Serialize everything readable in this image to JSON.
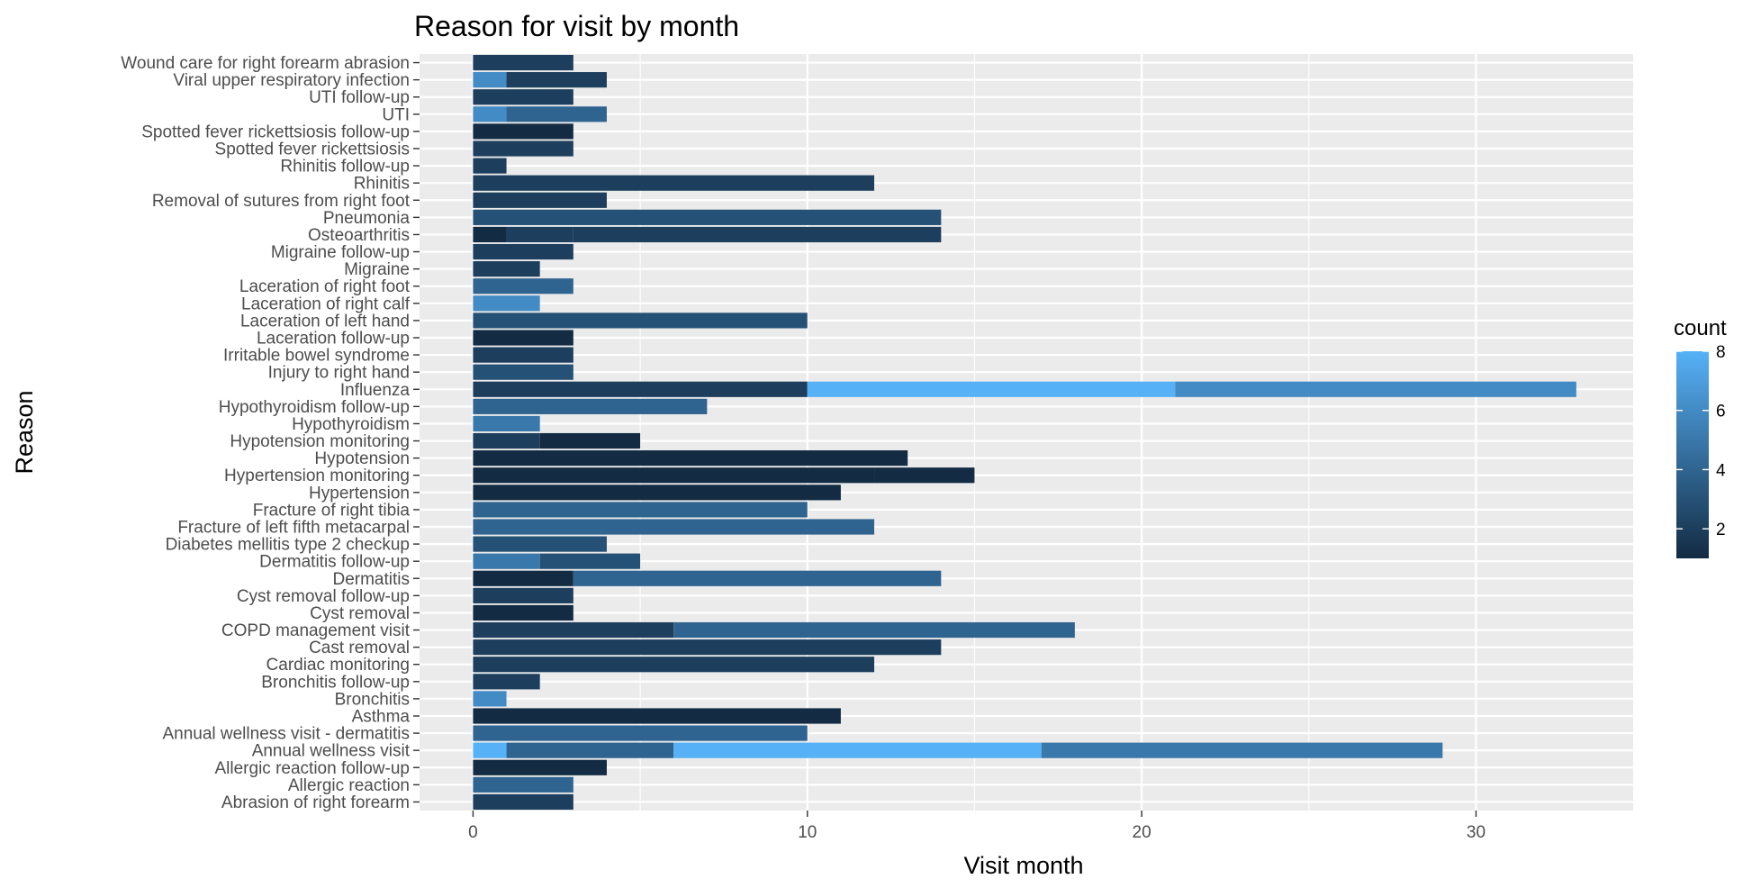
{
  "chart_data": {
    "type": "bar",
    "orientation": "horizontal",
    "stacked": true,
    "title": "Reason for visit by month",
    "xlabel": "Visit month",
    "ylabel": "Reason",
    "xlim": [
      -1.6,
      34.7
    ],
    "xticks": [
      0,
      10,
      20,
      30
    ],
    "grid": true,
    "legend": {
      "title": "count",
      "position": "right",
      "ticks": [
        2,
        4,
        6,
        8
      ],
      "range": [
        1,
        8
      ],
      "color_low": "#132B43",
      "color_high": "#56B1F7"
    },
    "categories": [
      "Wound care for right forearm abrasion",
      "Viral upper respiratory infection",
      "UTI follow-up",
      "UTI",
      "Spotted fever rickettsiosis follow-up",
      "Spotted fever rickettsiosis",
      "Rhinitis follow-up",
      "Rhinitis",
      "Removal of sutures from right foot",
      "Pneumonia",
      "Osteoarthritis",
      "Migraine follow-up",
      "Migraine",
      "Laceration of right foot",
      "Laceration of right calf",
      "Laceration of left hand",
      "Laceration follow-up",
      "Irritable bowel syndrome",
      "Injury to right hand",
      "Influenza",
      "Hypothyroidism follow-up",
      "Hypothyroidism",
      "Hypotension monitoring",
      "Hypotension",
      "Hypertension monitoring",
      "Hypertension",
      "Fracture of right tibia",
      "Fracture of left fifth metacarpal",
      "Diabetes mellitis type 2 checkup",
      "Dermatitis follow-up",
      "Dermatitis",
      "Cyst removal follow-up",
      "Cyst removal",
      "COPD management visit",
      "Cast removal",
      "Cardiac monitoring",
      "Bronchitis follow-up",
      "Bronchitis",
      "Asthma",
      "Annual wellness visit - dermatitis",
      "Annual wellness visit",
      "Allergic reaction follow-up",
      "Allergic reaction",
      "Abrasion of right forearm"
    ],
    "segments": [
      [
        {
          "start": 0,
          "end": 3,
          "count": 2
        }
      ],
      [
        {
          "start": 0,
          "end": 1,
          "count": 6
        },
        {
          "start": 1,
          "end": 4,
          "count": 2
        }
      ],
      [
        {
          "start": 0,
          "end": 3,
          "count": 2
        }
      ],
      [
        {
          "start": 0,
          "end": 1,
          "count": 6
        },
        {
          "start": 1,
          "end": 4,
          "count": 4
        }
      ],
      [
        {
          "start": 0,
          "end": 3,
          "count": 1
        }
      ],
      [
        {
          "start": 0,
          "end": 3,
          "count": 2
        }
      ],
      [
        {
          "start": 0,
          "end": 1,
          "count": 2
        }
      ],
      [
        {
          "start": 0,
          "end": 12,
          "count": 2
        }
      ],
      [
        {
          "start": 0,
          "end": 4,
          "count": 2
        }
      ],
      [
        {
          "start": 0,
          "end": 14,
          "count": 3
        }
      ],
      [
        {
          "start": 0,
          "end": 1,
          "count": 1
        },
        {
          "start": 1,
          "end": 3,
          "count": 2
        },
        {
          "start": 3,
          "end": 14,
          "count": 2
        }
      ],
      [
        {
          "start": 0,
          "end": 3,
          "count": 2
        }
      ],
      [
        {
          "start": 0,
          "end": 2,
          "count": 2
        }
      ],
      [
        {
          "start": 0,
          "end": 3,
          "count": 4
        }
      ],
      [
        {
          "start": 0,
          "end": 2,
          "count": 6
        }
      ],
      [
        {
          "start": 0,
          "end": 10,
          "count": 3
        }
      ],
      [
        {
          "start": 0,
          "end": 3,
          "count": 1
        }
      ],
      [
        {
          "start": 0,
          "end": 3,
          "count": 2
        }
      ],
      [
        {
          "start": 0,
          "end": 3,
          "count": 3
        }
      ],
      [
        {
          "start": 0,
          "end": 10,
          "count": 2
        },
        {
          "start": 10,
          "end": 21,
          "count": 8
        },
        {
          "start": 21,
          "end": 33,
          "count": 6
        }
      ],
      [
        {
          "start": 0,
          "end": 7,
          "count": 4
        }
      ],
      [
        {
          "start": 0,
          "end": 2,
          "count": 5
        }
      ],
      [
        {
          "start": 0,
          "end": 2,
          "count": 2
        },
        {
          "start": 2,
          "end": 5,
          "count": 1
        }
      ],
      [
        {
          "start": 0,
          "end": 13,
          "count": 1
        }
      ],
      [
        {
          "start": 0,
          "end": 12,
          "count": 1
        },
        {
          "start": 12,
          "end": 15,
          "count": 1
        }
      ],
      [
        {
          "start": 0,
          "end": 11,
          "count": 1
        }
      ],
      [
        {
          "start": 0,
          "end": 10,
          "count": 4
        }
      ],
      [
        {
          "start": 0,
          "end": 12,
          "count": 4
        }
      ],
      [
        {
          "start": 0,
          "end": 4,
          "count": 3
        }
      ],
      [
        {
          "start": 0,
          "end": 2,
          "count": 5
        },
        {
          "start": 2,
          "end": 5,
          "count": 3
        }
      ],
      [
        {
          "start": 0,
          "end": 3,
          "count": 1
        },
        {
          "start": 3,
          "end": 14,
          "count": 4
        }
      ],
      [
        {
          "start": 0,
          "end": 3,
          "count": 2
        }
      ],
      [
        {
          "start": 0,
          "end": 3,
          "count": 1
        }
      ],
      [
        {
          "start": 0,
          "end": 6,
          "count": 2
        },
        {
          "start": 6,
          "end": 18,
          "count": 4
        }
      ],
      [
        {
          "start": 0,
          "end": 14,
          "count": 2
        }
      ],
      [
        {
          "start": 0,
          "end": 12,
          "count": 2
        }
      ],
      [
        {
          "start": 0,
          "end": 2,
          "count": 2
        }
      ],
      [
        {
          "start": 0,
          "end": 1,
          "count": 6
        }
      ],
      [
        {
          "start": 0,
          "end": 11,
          "count": 1
        }
      ],
      [
        {
          "start": 0,
          "end": 10,
          "count": 4
        }
      ],
      [
        {
          "start": 0,
          "end": 1,
          "count": 8
        },
        {
          "start": 1,
          "end": 6,
          "count": 4
        },
        {
          "start": 6,
          "end": 17,
          "count": 8
        },
        {
          "start": 17,
          "end": 29,
          "count": 5
        }
      ],
      [
        {
          "start": 0,
          "end": 4,
          "count": 1
        }
      ],
      [
        {
          "start": 0,
          "end": 3,
          "count": 4
        }
      ],
      [
        {
          "start": 0,
          "end": 3,
          "count": 2
        }
      ]
    ]
  }
}
